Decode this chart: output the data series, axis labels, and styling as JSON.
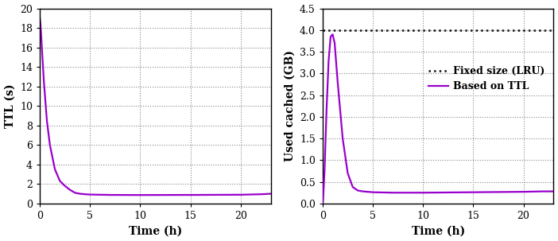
{
  "xlabel": "Time (h)",
  "left_ylabel": "TTL (s)",
  "right_ylabel": "Used cached (GB)",
  "ttl_x": [
    0,
    0.02,
    0.05,
    0.1,
    0.2,
    0.4,
    0.7,
    1.0,
    1.5,
    2.0,
    2.5,
    3.0,
    3.5,
    4.0,
    4.5,
    5.0,
    7.0,
    10.0,
    15.0,
    20.0,
    22.0,
    23.0
  ],
  "ttl_y": [
    19.0,
    18.8,
    18.5,
    17.8,
    16.0,
    12.5,
    8.5,
    6.0,
    3.5,
    2.3,
    1.8,
    1.4,
    1.1,
    1.0,
    0.95,
    0.92,
    0.88,
    0.87,
    0.88,
    0.9,
    0.95,
    1.0
  ],
  "cache_x": [
    0,
    0.05,
    0.2,
    0.4,
    0.6,
    0.8,
    1.0,
    1.2,
    1.5,
    2.0,
    2.5,
    3.0,
    3.5,
    4.0,
    4.5,
    5.0,
    7.0,
    10.0,
    15.0,
    20.0,
    22.0,
    23.0
  ],
  "cache_y": [
    0,
    0.1,
    0.8,
    2.2,
    3.3,
    3.85,
    3.9,
    3.7,
    2.8,
    1.5,
    0.7,
    0.38,
    0.3,
    0.28,
    0.27,
    0.26,
    0.25,
    0.25,
    0.26,
    0.27,
    0.28,
    0.28
  ],
  "lru_y": 4.0,
  "ttl_color": "#9900cc",
  "lru_color": "#111111",
  "xlim_left": [
    0,
    23
  ],
  "ylim_left": [
    0,
    20
  ],
  "xlim_right": [
    0,
    23
  ],
  "ylim_right": [
    0,
    4.5
  ],
  "xticks": [
    0,
    5,
    10,
    15,
    20
  ],
  "yticks_left": [
    0,
    2,
    4,
    6,
    8,
    10,
    12,
    14,
    16,
    18,
    20
  ],
  "yticks_right": [
    0,
    0.5,
    1.0,
    1.5,
    2.0,
    2.5,
    3.0,
    3.5,
    4.0,
    4.5
  ],
  "legend_fixed": "Fixed size (LRU)",
  "legend_ttl": "Based on TTL",
  "line_width": 1.6,
  "font_size_label": 10,
  "font_size_tick": 9,
  "font_size_legend": 9
}
